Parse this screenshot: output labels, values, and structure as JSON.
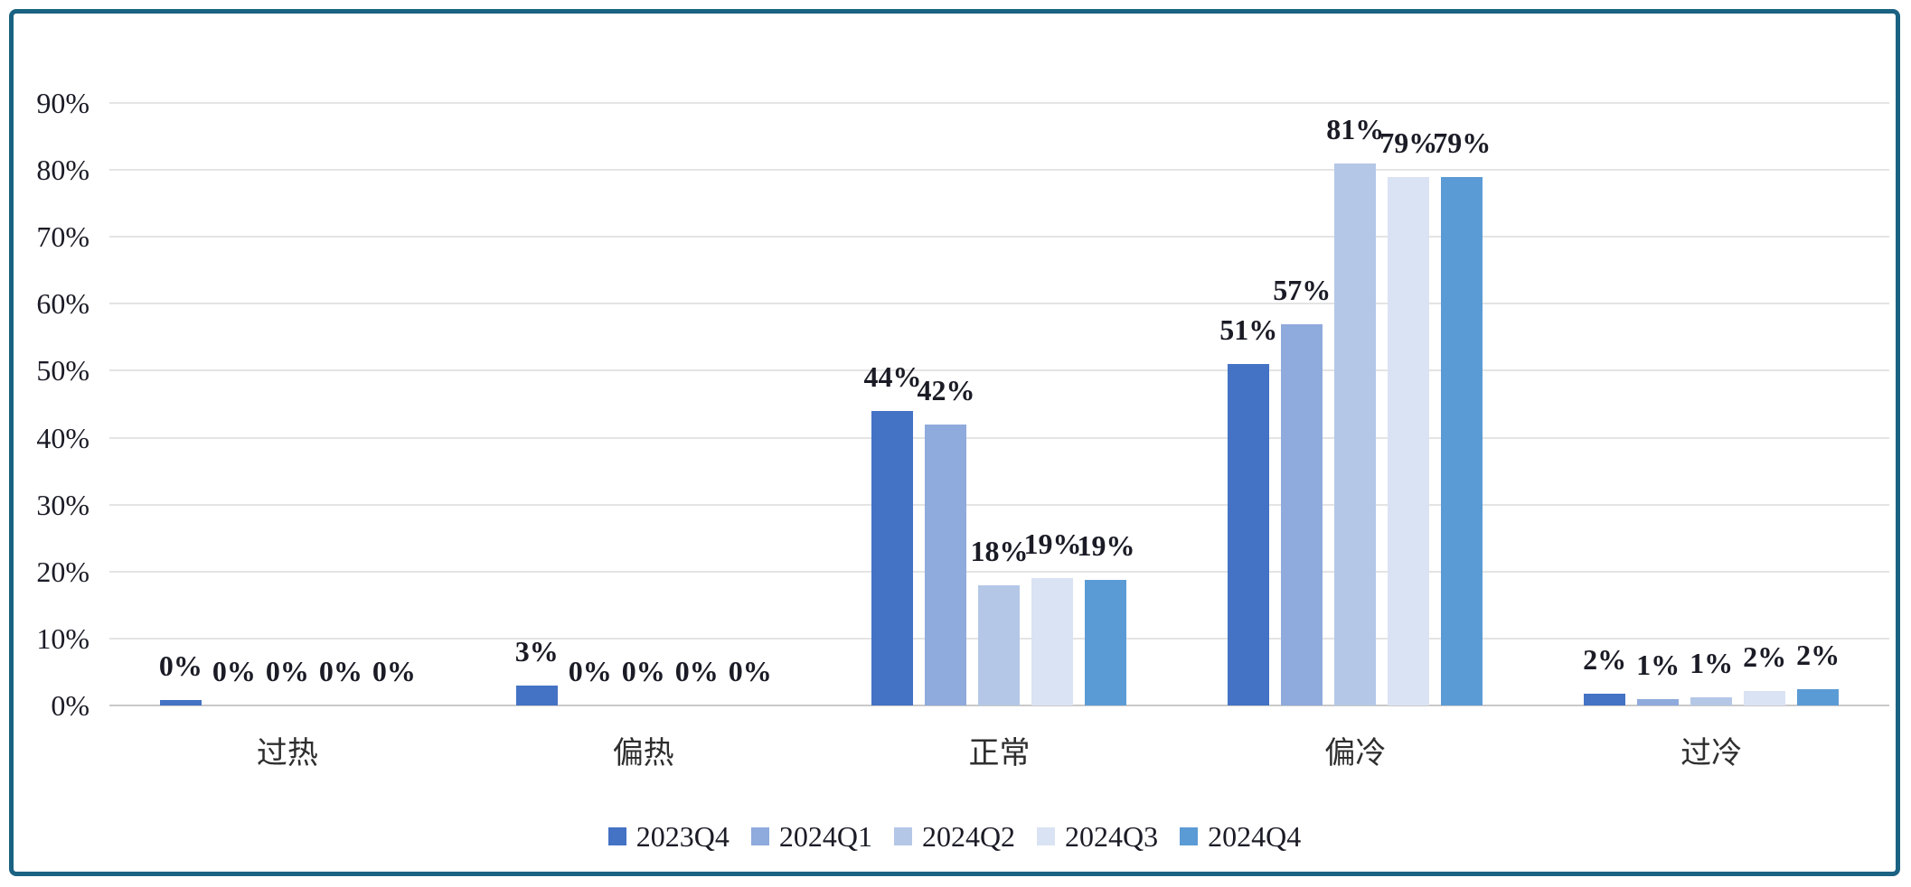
{
  "chart_data": {
    "type": "bar",
    "title": "",
    "xlabel": "",
    "ylabel": "",
    "categories": [
      "过热",
      "偏热",
      "正常",
      "偏冷",
      "过冷"
    ],
    "series": [
      {
        "name": "2023Q4",
        "color": "#4472C4",
        "values": [
          0,
          3,
          44,
          51,
          2
        ],
        "display_heights": [
          0.8,
          3,
          44,
          51,
          1.8
        ]
      },
      {
        "name": "2024Q1",
        "color": "#8FAADC",
        "values": [
          0,
          0,
          42,
          57,
          1
        ],
        "display_heights": [
          0,
          0,
          42,
          57,
          0.9
        ]
      },
      {
        "name": "2024Q2",
        "color": "#B4C7E7",
        "values": [
          0,
          0,
          18,
          81,
          1
        ],
        "display_heights": [
          0,
          0,
          18,
          81,
          1.2
        ]
      },
      {
        "name": "2024Q3",
        "color": "#DAE3F3",
        "values": [
          0,
          0,
          19,
          79,
          2
        ],
        "display_heights": [
          0,
          0,
          19,
          79,
          2.1
        ]
      },
      {
        "name": "2024Q4",
        "color": "#5B9BD5",
        "values": [
          0,
          0,
          19,
          79,
          2
        ],
        "display_heights": [
          0,
          0,
          18.8,
          79,
          2.4
        ]
      }
    ],
    "value_label_suffix": "%",
    "y_ticks": [
      "0%",
      "10%",
      "20%",
      "30%",
      "40%",
      "50%",
      "60%",
      "70%",
      "80%",
      "90%"
    ],
    "ylim": [
      0,
      90
    ],
    "grid": true,
    "legend_position": "bottom",
    "frame_color": "#1A6282",
    "gridline_color": "#E4E4E4",
    "axis_line_color": "#C9C9C9",
    "text_color": "#1B1B26"
  }
}
